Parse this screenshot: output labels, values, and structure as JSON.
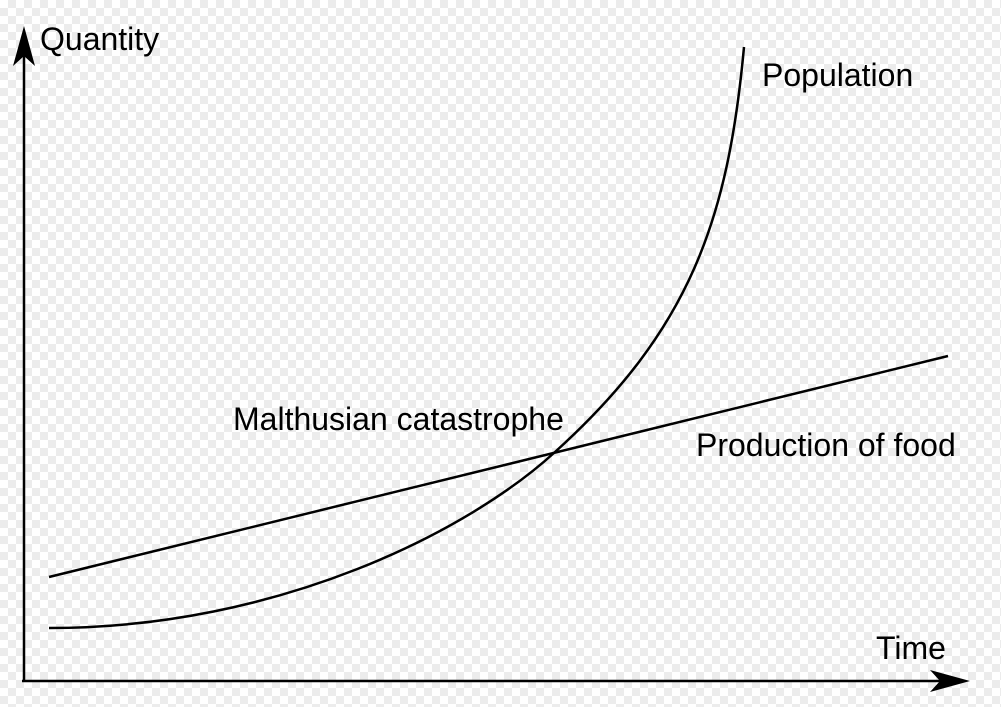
{
  "chart_data": {
    "type": "line",
    "xlabel": "Time",
    "ylabel": "Quantity",
    "series": [
      {
        "name": "Population",
        "shape": "exponential growth"
      },
      {
        "name": "Production of food",
        "shape": "linear growth"
      }
    ],
    "annotations": [
      {
        "text": "Malthusian catastrophe",
        "marks": "intersection of the two curves"
      }
    ]
  },
  "colors": {
    "ink": "#000000",
    "background": "#ffffff",
    "checker": "#ececec"
  }
}
